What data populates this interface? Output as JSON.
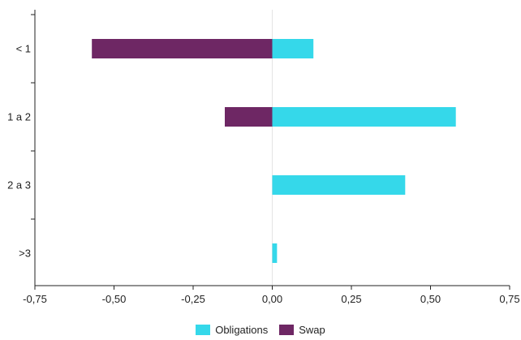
{
  "chart_data": {
    "type": "bar",
    "orientation": "horizontal",
    "stacked": true,
    "categories": [
      "< 1",
      "1 a 2",
      "2 a 3",
      ">3"
    ],
    "series": [
      {
        "name": "Obligations",
        "color": "#35d8ea",
        "values": [
          0.13,
          0.58,
          0.42,
          0.015
        ]
      },
      {
        "name": "Swap",
        "color": "#6e2764",
        "values": [
          -0.57,
          -0.15,
          0,
          0
        ]
      }
    ],
    "xlim": [
      -0.75,
      0.75
    ],
    "x_ticks": [
      -0.75,
      -0.5,
      -0.25,
      0,
      0.25,
      0.5,
      0.75
    ],
    "x_tick_labels": [
      "-0,75",
      "-0,50",
      "-0,25",
      "0,00",
      "0,25",
      "0,50",
      "0,75"
    ],
    "title": "",
    "xlabel": "",
    "ylabel": "",
    "grid": false,
    "legend_position": "bottom"
  }
}
